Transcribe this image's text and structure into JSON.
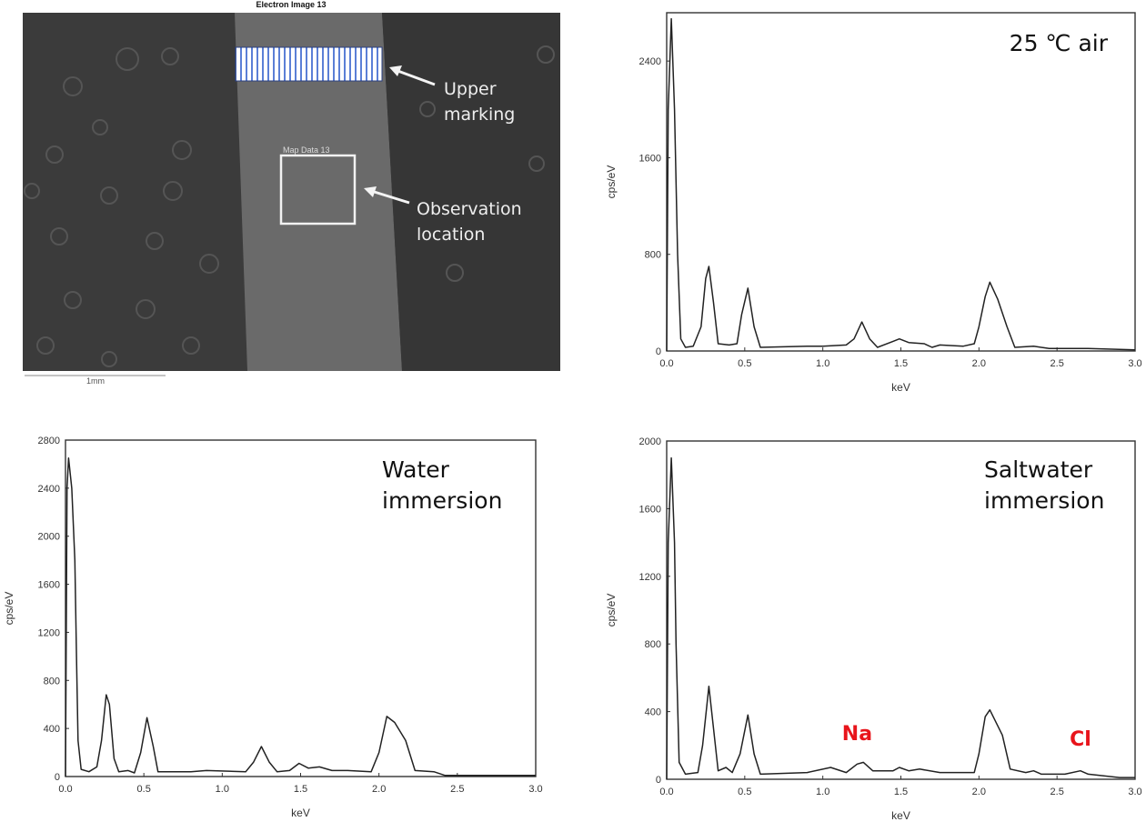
{
  "sem_image": {
    "title": "Electron Image 13",
    "map_label": "Map Data 13",
    "upper_marking_label": [
      "Upper",
      "marking"
    ],
    "observation_label": [
      "Observation",
      "location"
    ],
    "scale_bar_label": "1mm",
    "marking_color": "#5b7fd6"
  },
  "chart_data": [
    {
      "type": "line",
      "id": "air",
      "annotation": "25 ℃ air",
      "xlabel": "keV",
      "ylabel": "cps/eV",
      "xlim": [
        0,
        3.0
      ],
      "ylim": [
        0,
        2800
      ],
      "xticks": [
        "0.0",
        "0.5",
        "1.0",
        "1.5",
        "2.0",
        "2.5",
        "3.0"
      ],
      "yticks": [
        0,
        800,
        1600,
        2400
      ],
      "element_labels": [],
      "points": [
        [
          0,
          0
        ],
        [
          0.01,
          2000
        ],
        [
          0.03,
          2750
        ],
        [
          0.05,
          2000
        ],
        [
          0.07,
          800
        ],
        [
          0.09,
          100
        ],
        [
          0.12,
          30
        ],
        [
          0.17,
          40
        ],
        [
          0.22,
          200
        ],
        [
          0.25,
          600
        ],
        [
          0.27,
          700
        ],
        [
          0.3,
          400
        ],
        [
          0.33,
          60
        ],
        [
          0.4,
          50
        ],
        [
          0.45,
          60
        ],
        [
          0.48,
          300
        ],
        [
          0.52,
          520
        ],
        [
          0.56,
          200
        ],
        [
          0.6,
          30
        ],
        [
          0.9,
          40
        ],
        [
          1.0,
          40
        ],
        [
          1.15,
          50
        ],
        [
          1.2,
          100
        ],
        [
          1.25,
          240
        ],
        [
          1.3,
          100
        ],
        [
          1.35,
          30
        ],
        [
          1.45,
          80
        ],
        [
          1.49,
          100
        ],
        [
          1.55,
          70
        ],
        [
          1.65,
          60
        ],
        [
          1.7,
          30
        ],
        [
          1.75,
          50
        ],
        [
          1.9,
          40
        ],
        [
          1.97,
          60
        ],
        [
          2.0,
          200
        ],
        [
          2.04,
          450
        ],
        [
          2.07,
          570
        ],
        [
          2.12,
          430
        ],
        [
          2.18,
          200
        ],
        [
          2.23,
          30
        ],
        [
          2.35,
          40
        ],
        [
          2.45,
          20
        ],
        [
          2.7,
          20
        ],
        [
          3.0,
          10
        ]
      ]
    },
    {
      "type": "line",
      "id": "water",
      "annotation": [
        "Water",
        "immersion"
      ],
      "xlabel": "keV",
      "ylabel": "cps/eV",
      "xlim": [
        0,
        3.0
      ],
      "ylim": [
        0,
        2800
      ],
      "xticks": [
        "0.0",
        "0.5",
        "1.0",
        "1.5",
        "2.0",
        "2.5",
        "3.0"
      ],
      "yticks": [
        0,
        400,
        800,
        1200,
        1600,
        2000,
        2400,
        2800
      ],
      "element_labels": [],
      "points": [
        [
          0,
          0
        ],
        [
          0.01,
          2400
        ],
        [
          0.02,
          2650
        ],
        [
          0.04,
          2400
        ],
        [
          0.06,
          1800
        ],
        [
          0.07,
          1000
        ],
        [
          0.08,
          300
        ],
        [
          0.1,
          60
        ],
        [
          0.15,
          40
        ],
        [
          0.2,
          80
        ],
        [
          0.23,
          300
        ],
        [
          0.26,
          680
        ],
        [
          0.28,
          600
        ],
        [
          0.31,
          150
        ],
        [
          0.34,
          40
        ],
        [
          0.4,
          50
        ],
        [
          0.44,
          30
        ],
        [
          0.48,
          200
        ],
        [
          0.52,
          490
        ],
        [
          0.56,
          250
        ],
        [
          0.59,
          40
        ],
        [
          0.8,
          40
        ],
        [
          0.9,
          50
        ],
        [
          1.15,
          40
        ],
        [
          1.2,
          120
        ],
        [
          1.25,
          250
        ],
        [
          1.3,
          120
        ],
        [
          1.35,
          40
        ],
        [
          1.43,
          50
        ],
        [
          1.49,
          110
        ],
        [
          1.55,
          70
        ],
        [
          1.62,
          80
        ],
        [
          1.7,
          50
        ],
        [
          1.8,
          50
        ],
        [
          1.95,
          40
        ],
        [
          2.0,
          200
        ],
        [
          2.05,
          500
        ],
        [
          2.1,
          450
        ],
        [
          2.17,
          300
        ],
        [
          2.23,
          50
        ],
        [
          2.35,
          40
        ],
        [
          2.42,
          10
        ],
        [
          3.0,
          10
        ]
      ]
    },
    {
      "type": "line",
      "id": "saltwater",
      "annotation": [
        "Saltwater",
        "immersion"
      ],
      "xlabel": "keV",
      "ylabel": "cps/eV",
      "xlim": [
        0,
        3.0
      ],
      "ylim": [
        0,
        2000
      ],
      "xticks": [
        "0.0",
        "0.5",
        "1.0",
        "1.5",
        "2.0",
        "2.5",
        "3.0"
      ],
      "yticks": [
        0,
        400,
        800,
        1200,
        1600,
        2000
      ],
      "element_labels": [
        {
          "text": "Na",
          "x": 1.22,
          "y": 230
        },
        {
          "text": "Cl",
          "x": 2.65,
          "y": 200
        }
      ],
      "element_color": "#e8141b",
      "points": [
        [
          0,
          0
        ],
        [
          0.01,
          1400
        ],
        [
          0.03,
          1900
        ],
        [
          0.05,
          1400
        ],
        [
          0.06,
          800
        ],
        [
          0.08,
          100
        ],
        [
          0.12,
          30
        ],
        [
          0.2,
          40
        ],
        [
          0.23,
          200
        ],
        [
          0.27,
          550
        ],
        [
          0.3,
          300
        ],
        [
          0.33,
          50
        ],
        [
          0.38,
          70
        ],
        [
          0.42,
          40
        ],
        [
          0.47,
          150
        ],
        [
          0.52,
          380
        ],
        [
          0.56,
          150
        ],
        [
          0.6,
          30
        ],
        [
          0.9,
          40
        ],
        [
          1.05,
          70
        ],
        [
          1.15,
          40
        ],
        [
          1.22,
          90
        ],
        [
          1.26,
          100
        ],
        [
          1.32,
          50
        ],
        [
          1.45,
          50
        ],
        [
          1.49,
          70
        ],
        [
          1.55,
          50
        ],
        [
          1.62,
          60
        ],
        [
          1.75,
          40
        ],
        [
          1.97,
          40
        ],
        [
          2.0,
          150
        ],
        [
          2.04,
          370
        ],
        [
          2.07,
          410
        ],
        [
          2.15,
          260
        ],
        [
          2.2,
          60
        ],
        [
          2.3,
          40
        ],
        [
          2.35,
          50
        ],
        [
          2.4,
          30
        ],
        [
          2.55,
          30
        ],
        [
          2.65,
          50
        ],
        [
          2.7,
          30
        ],
        [
          2.9,
          10
        ],
        [
          3.0,
          10
        ]
      ]
    }
  ]
}
